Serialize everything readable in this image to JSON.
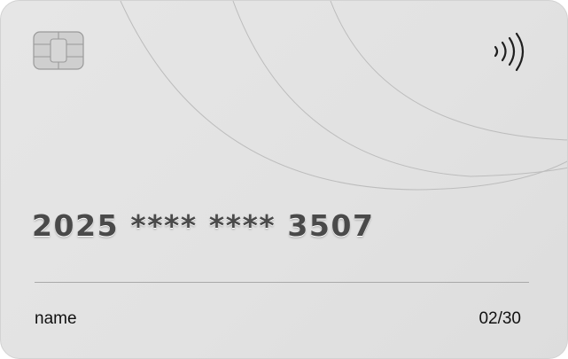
{
  "card": {
    "number_groups": [
      "2025",
      "****",
      "****",
      "3507"
    ],
    "number_display": "2025 **** **** 3507",
    "holder_name": "name",
    "expiry": "02/30"
  },
  "icons": {
    "chip": "card-chip-icon",
    "contactless": "contactless-icon"
  },
  "colors": {
    "card_background": "#e3e3e3",
    "number_text": "#4a4a4a",
    "label_text": "#111111",
    "divider": "#a9a9a9",
    "arc_lines": "#b9b9b9"
  }
}
